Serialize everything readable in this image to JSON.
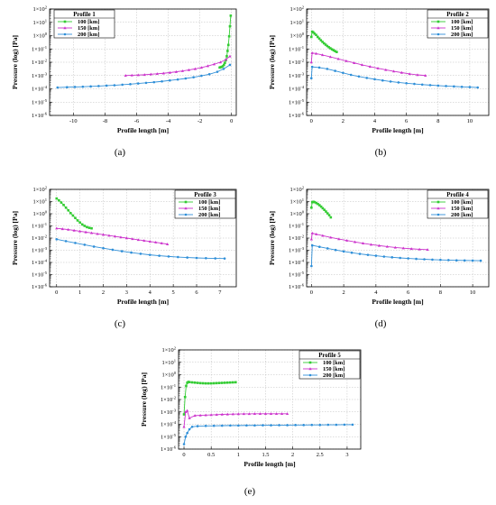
{
  "colors": {
    "series_100": "#33cc33",
    "series_150": "#cc33cc",
    "series_200": "#2f8fd8",
    "grid": "#bdbdbd",
    "axis": "#000000"
  },
  "chart_data": [
    {
      "type": "line",
      "caption": "(a)",
      "legend_title": "Profile 1",
      "legend_position": "top-left",
      "xlabel": "Profile length [m]",
      "ylabel": "Pressure (log) [Pa]",
      "xlim": [
        -11.5,
        0.3
      ],
      "xticks": [
        -10,
        -8,
        -6,
        -4,
        -2,
        0
      ],
      "ylim_log10": [
        -6,
        2
      ],
      "yscale": "log",
      "grid": true,
      "series": [
        {
          "name": "100 [km]",
          "marker": "square",
          "x": [
            -0.75,
            -0.7,
            -0.63,
            -0.55,
            -0.48,
            -0.42,
            -0.36,
            -0.3,
            -0.25,
            -0.2,
            -0.15,
            -0.1,
            -0.05
          ],
          "log10_y": [
            -2.4,
            -2.38,
            -2.35,
            -2.3,
            -2.2,
            -2.05,
            -1.85,
            -1.55,
            -1.15,
            -0.7,
            -0.05,
            0.7,
            1.5
          ]
        },
        {
          "name": "150 [km]",
          "marker": "triangle",
          "x": [
            -6.7,
            -6.3,
            -5.9,
            -5.5,
            -5.1,
            -4.7,
            -4.3,
            -3.9,
            -3.5,
            -3.1,
            -2.7,
            -2.3,
            -1.9,
            -1.5,
            -1.1,
            -0.7,
            -0.35,
            -0.1
          ],
          "log10_y": [
            -3.0,
            -2.98,
            -2.96,
            -2.94,
            -2.9,
            -2.87,
            -2.83,
            -2.78,
            -2.72,
            -2.66,
            -2.58,
            -2.5,
            -2.4,
            -2.28,
            -2.15,
            -2.0,
            -1.8,
            -1.55
          ]
        },
        {
          "name": "200 [km]",
          "marker": "circle",
          "x": [
            -11.0,
            -10.4,
            -9.9,
            -9.4,
            -8.9,
            -8.4,
            -7.9,
            -7.4,
            -6.9,
            -6.4,
            -5.9,
            -5.4,
            -4.9,
            -4.4,
            -3.9,
            -3.4,
            -2.9,
            -2.4,
            -1.9,
            -1.4,
            -0.9,
            -0.5,
            -0.1
          ],
          "log10_y": [
            -3.9,
            -3.88,
            -3.86,
            -3.84,
            -3.82,
            -3.79,
            -3.76,
            -3.73,
            -3.69,
            -3.65,
            -3.6,
            -3.55,
            -3.5,
            -3.44,
            -3.37,
            -3.3,
            -3.22,
            -3.13,
            -3.02,
            -2.9,
            -2.72,
            -2.5,
            -2.2
          ]
        }
      ]
    },
    {
      "type": "line",
      "caption": "(b)",
      "legend_title": "Profile 2",
      "legend_position": "top-right",
      "xlabel": "Profile length [m]",
      "ylabel": "Pressure (log) [Pa]",
      "xlim": [
        -0.3,
        11.2
      ],
      "xticks": [
        0,
        2,
        4,
        6,
        8,
        10
      ],
      "ylim_log10": [
        -6,
        2
      ],
      "yscale": "log",
      "grid": true,
      "series": [
        {
          "name": "100 [km]",
          "marker": "square",
          "x": [
            0.0,
            0.05,
            0.12,
            0.2,
            0.3,
            0.4,
            0.5,
            0.6,
            0.7,
            0.8,
            0.9,
            1.0,
            1.1,
            1.2,
            1.3,
            1.4,
            1.5,
            1.6
          ],
          "log10_y": [
            -0.1,
            0.3,
            0.25,
            0.15,
            0.05,
            -0.1,
            -0.22,
            -0.35,
            -0.47,
            -0.58,
            -0.68,
            -0.78,
            -0.87,
            -0.95,
            -1.03,
            -1.1,
            -1.17,
            -1.23
          ]
        },
        {
          "name": "150 [km]",
          "marker": "triangle",
          "x": [
            0.0,
            0.05,
            0.3,
            0.7,
            1.2,
            1.7,
            2.2,
            2.7,
            3.2,
            3.7,
            4.2,
            4.7,
            5.2,
            5.7,
            6.2,
            6.7,
            7.2
          ],
          "log10_y": [
            -2.0,
            -1.3,
            -1.35,
            -1.45,
            -1.6,
            -1.75,
            -1.9,
            -2.05,
            -2.2,
            -2.33,
            -2.45,
            -2.57,
            -2.68,
            -2.78,
            -2.88,
            -2.95,
            -3.0
          ]
        },
        {
          "name": "200 [km]",
          "marker": "circle",
          "x": [
            0.0,
            0.05,
            0.5,
            1.0,
            1.5,
            2.0,
            2.5,
            3.0,
            3.5,
            4.0,
            4.5,
            5.0,
            5.5,
            6.0,
            6.5,
            7.0,
            7.5,
            8.0,
            8.5,
            9.0,
            9.5,
            10.0,
            10.5
          ],
          "log10_y": [
            -3.2,
            -2.35,
            -2.4,
            -2.5,
            -2.65,
            -2.8,
            -2.95,
            -3.07,
            -3.18,
            -3.28,
            -3.37,
            -3.45,
            -3.52,
            -3.58,
            -3.63,
            -3.68,
            -3.72,
            -3.76,
            -3.79,
            -3.82,
            -3.85,
            -3.87,
            -3.9
          ]
        }
      ]
    },
    {
      "type": "line",
      "caption": "(c)",
      "legend_title": "Profile 3",
      "legend_position": "top-right",
      "xlabel": "Profile length [m]",
      "ylabel": "Pressure (log) [Pa]",
      "xlim": [
        -0.3,
        7.7
      ],
      "xticks": [
        0,
        1,
        2,
        3,
        4,
        5,
        6,
        7
      ],
      "ylim_log10": [
        -6,
        2
      ],
      "yscale": "log",
      "grid": true,
      "series": [
        {
          "name": "100 [km]",
          "marker": "square",
          "x": [
            0.0,
            0.1,
            0.2,
            0.3,
            0.4,
            0.5,
            0.6,
            0.7,
            0.8,
            0.9,
            1.0,
            1.1,
            1.2,
            1.3,
            1.4,
            1.5
          ],
          "log10_y": [
            1.25,
            1.1,
            0.92,
            0.72,
            0.5,
            0.28,
            0.05,
            -0.15,
            -0.35,
            -0.55,
            -0.72,
            -0.88,
            -1.0,
            -1.1,
            -1.16,
            -1.2
          ]
        },
        {
          "name": "150 [km]",
          "marker": "triangle",
          "x": [
            0.0,
            0.25,
            0.5,
            0.75,
            1.0,
            1.25,
            1.5,
            1.75,
            2.0,
            2.25,
            2.5,
            2.75,
            3.0,
            3.25,
            3.5,
            3.75,
            4.0,
            4.25,
            4.5,
            4.75
          ],
          "log10_y": [
            -1.2,
            -1.25,
            -1.3,
            -1.37,
            -1.44,
            -1.51,
            -1.58,
            -1.65,
            -1.72,
            -1.79,
            -1.86,
            -1.93,
            -2.0,
            -2.07,
            -2.14,
            -2.21,
            -2.28,
            -2.35,
            -2.42,
            -2.5
          ]
        },
        {
          "name": "200 [km]",
          "marker": "circle",
          "x": [
            0.0,
            0.4,
            0.8,
            1.2,
            1.6,
            2.0,
            2.4,
            2.8,
            3.2,
            3.6,
            4.0,
            4.4,
            4.8,
            5.2,
            5.6,
            6.0,
            6.4,
            6.8,
            7.2
          ],
          "log10_y": [
            -2.1,
            -2.25,
            -2.4,
            -2.55,
            -2.7,
            -2.83,
            -2.96,
            -3.08,
            -3.19,
            -3.29,
            -3.38,
            -3.45,
            -3.51,
            -3.56,
            -3.6,
            -3.63,
            -3.65,
            -3.67,
            -3.68
          ]
        }
      ]
    },
    {
      "type": "line",
      "caption": "(d)",
      "legend_title": "Profile 4",
      "legend_position": "top-right",
      "xlabel": "Profile length [m]",
      "ylabel": "Pressure (log) [Pa]",
      "xlim": [
        -0.3,
        11.0
      ],
      "xticks": [
        0,
        2,
        4,
        6,
        8,
        10
      ],
      "ylim_log10": [
        -6,
        2
      ],
      "yscale": "log",
      "grid": true,
      "series": [
        {
          "name": "100 [km]",
          "marker": "square",
          "x": [
            0.0,
            0.05,
            0.12,
            0.2,
            0.3,
            0.4,
            0.5,
            0.6,
            0.7,
            0.8,
            0.9,
            1.0,
            1.1,
            1.2
          ],
          "log10_y": [
            0.5,
            0.95,
            0.98,
            0.95,
            0.88,
            0.8,
            0.7,
            0.58,
            0.45,
            0.32,
            0.18,
            0.03,
            -0.12,
            -0.3
          ]
        },
        {
          "name": "150 [km]",
          "marker": "triangle",
          "x": [
            0.0,
            0.05,
            0.3,
            0.7,
            1.2,
            1.7,
            2.2,
            2.7,
            3.2,
            3.7,
            4.2,
            4.7,
            5.2,
            5.7,
            6.2,
            6.7,
            7.2
          ],
          "log10_y": [
            -2.1,
            -1.6,
            -1.68,
            -1.8,
            -1.95,
            -2.08,
            -2.2,
            -2.32,
            -2.43,
            -2.53,
            -2.62,
            -2.7,
            -2.77,
            -2.83,
            -2.88,
            -2.92,
            -2.95
          ]
        },
        {
          "name": "200 [km]",
          "marker": "circle",
          "x": [
            0.0,
            0.05,
            0.5,
            1.0,
            1.5,
            2.0,
            2.5,
            3.0,
            3.5,
            4.0,
            4.5,
            5.0,
            5.5,
            6.0,
            6.5,
            7.0,
            7.5,
            8.0,
            8.5,
            9.0,
            9.5,
            10.0,
            10.5
          ],
          "log10_y": [
            -4.3,
            -2.6,
            -2.72,
            -2.85,
            -2.98,
            -3.1,
            -3.2,
            -3.3,
            -3.38,
            -3.45,
            -3.52,
            -3.58,
            -3.63,
            -3.67,
            -3.71,
            -3.74,
            -3.77,
            -3.79,
            -3.81,
            -3.83,
            -3.84,
            -3.85,
            -3.86
          ]
        }
      ]
    },
    {
      "type": "line",
      "caption": "(e)",
      "legend_title": "Profile 5",
      "legend_position": "top-right",
      "xlabel": "Profile length [m]",
      "ylabel": "Pressure (log) [Pa]",
      "xlim": [
        -0.1,
        3.25
      ],
      "xticks": [
        0,
        0.5,
        1,
        1.5,
        2,
        2.5,
        3
      ],
      "ylim_log10": [
        -6,
        2
      ],
      "yscale": "log",
      "grid": true,
      "series": [
        {
          "name": "100 [km]",
          "marker": "square",
          "x": [
            0.0,
            0.02,
            0.04,
            0.06,
            0.08,
            0.1,
            0.15,
            0.2,
            0.25,
            0.3,
            0.35,
            0.4,
            0.45,
            0.5,
            0.55,
            0.6,
            0.65,
            0.7,
            0.75,
            0.8,
            0.85,
            0.9,
            0.95
          ],
          "log10_y": [
            -3.2,
            -1.8,
            -0.9,
            -0.65,
            -0.58,
            -0.6,
            -0.62,
            -0.64,
            -0.66,
            -0.68,
            -0.69,
            -0.7,
            -0.7,
            -0.7,
            -0.69,
            -0.68,
            -0.67,
            -0.66,
            -0.65,
            -0.64,
            -0.63,
            -0.62,
            -0.61
          ]
        },
        {
          "name": "150 [km]",
          "marker": "triangle",
          "x": [
            0.0,
            0.03,
            0.06,
            0.1,
            0.2,
            0.3,
            0.4,
            0.5,
            0.6,
            0.7,
            0.8,
            0.9,
            1.0,
            1.1,
            1.2,
            1.3,
            1.4,
            1.5,
            1.6,
            1.7,
            1.8,
            1.9
          ],
          "log10_y": [
            -4.2,
            -3.0,
            -2.9,
            -3.5,
            -3.3,
            -3.28,
            -3.26,
            -3.24,
            -3.22,
            -3.2,
            -3.19,
            -3.18,
            -3.17,
            -3.16,
            -3.16,
            -3.15,
            -3.15,
            -3.15,
            -3.15,
            -3.15,
            -3.15,
            -3.15
          ]
        },
        {
          "name": "200 [km]",
          "marker": "circle",
          "x": [
            0.0,
            0.03,
            0.06,
            0.1,
            0.15,
            0.25,
            0.4,
            0.55,
            0.7,
            0.85,
            1.0,
            1.15,
            1.3,
            1.45,
            1.6,
            1.75,
            1.9,
            2.05,
            2.2,
            2.35,
            2.5,
            2.65,
            2.8,
            2.95,
            3.1
          ],
          "log10_y": [
            -5.6,
            -5.0,
            -4.7,
            -4.4,
            -4.2,
            -4.15,
            -4.13,
            -4.12,
            -4.11,
            -4.1,
            -4.1,
            -4.09,
            -4.09,
            -4.08,
            -4.08,
            -4.07,
            -4.07,
            -4.06,
            -4.06,
            -4.05,
            -4.05,
            -4.04,
            -4.04,
            -4.03,
            -4.03
          ]
        }
      ]
    }
  ]
}
